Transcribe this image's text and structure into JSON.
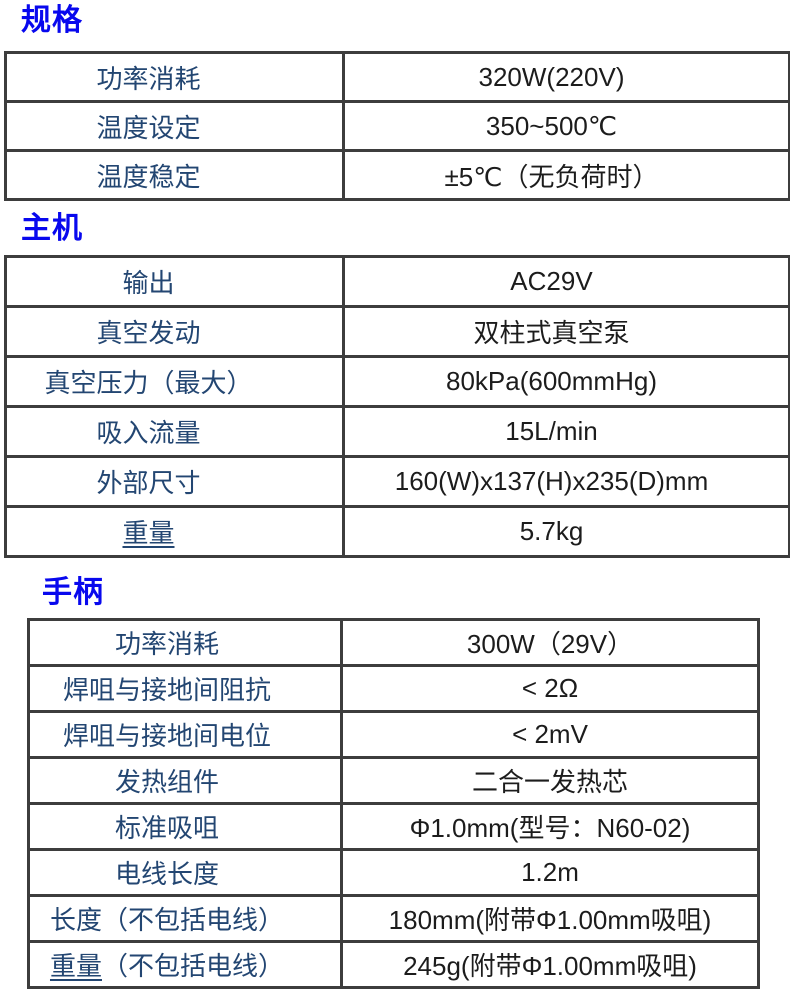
{
  "colors": {
    "section_title_blue": "#0808ee",
    "label_navy": "#234672",
    "value_black": "#1c1c1c",
    "table_border": "#3d3d3d",
    "background": "#ffffff"
  },
  "sections": [
    {
      "title": "规格",
      "rows": [
        {
          "label": "功率消耗",
          "value": "320W(220V)"
        },
        {
          "label": "温度设定",
          "value": "350~500℃"
        },
        {
          "label": "温度稳定",
          "value": "±5℃（无负荷时）"
        }
      ]
    },
    {
      "title": "主机",
      "rows": [
        {
          "label": "输出",
          "value": "AC29V"
        },
        {
          "label": "真空发动",
          "value": "双柱式真空泵"
        },
        {
          "label": "真空压力（最大）",
          "value": "80kPa(600mmHg)"
        },
        {
          "label": "吸入流量",
          "value": "15L/min"
        },
        {
          "label": "外部尺寸",
          "value": "160(W)x137(H)x235(D)mm"
        },
        {
          "label_u": "重量",
          "label": "",
          "value": "5.7kg"
        }
      ]
    },
    {
      "title": "手柄",
      "rows": [
        {
          "label": "功率消耗",
          "value": "300W（29V）"
        },
        {
          "label": "焊咀与接地间阻抗",
          "value": "< 2Ω"
        },
        {
          "label": "焊咀与接地间电位",
          "value": "< 2mV"
        },
        {
          "label": "发热组件",
          "value": "二合一发热芯"
        },
        {
          "label": "标准吸咀",
          "value": "Φ1.0mm(型号：N60-02)"
        },
        {
          "label": "电线长度",
          "value": "1.2m"
        },
        {
          "label": "长度（不包括电线）",
          "value": "180mm(附带Φ1.00mm吸咀)"
        },
        {
          "label_u": "重量",
          "label": "（不包括电线）",
          "value": "245g(附带Φ1.00mm吸咀)"
        }
      ]
    }
  ]
}
